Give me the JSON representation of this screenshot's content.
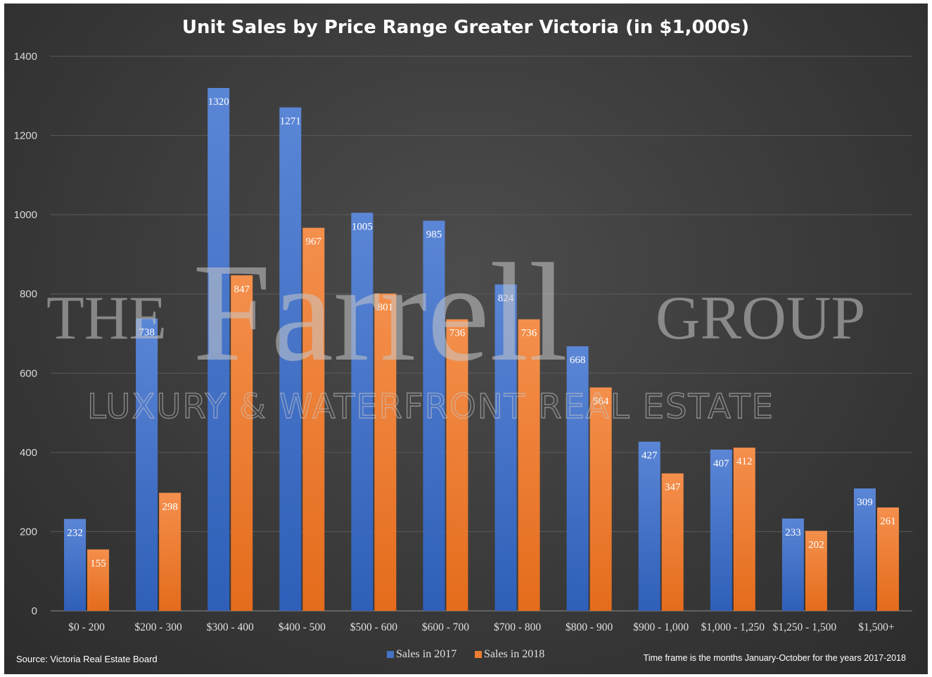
{
  "chart_data": {
    "type": "bar",
    "title": "Unit Sales by Price Range Greater Victoria (in $1,000s)",
    "categories": [
      "$0 - 200",
      "$200 - 300",
      "$300 - 400",
      "$400 - 500",
      "$500 - 600",
      "$600 - 700",
      "$700 - 800",
      "$800 - 900",
      "$900 - 1,000",
      "$1,000 - 1,250",
      "$1,250 - 1,500",
      "$1,500+"
    ],
    "series": [
      {
        "name": "Sales in 2017",
        "color": "#4472c4",
        "values": [
          232,
          738,
          1320,
          1271,
          1005,
          985,
          824,
          668,
          427,
          407,
          233,
          309
        ]
      },
      {
        "name": "Sales in 2018",
        "color": "#ed7d31",
        "values": [
          155,
          298,
          847,
          967,
          801,
          736,
          736,
          564,
          347,
          412,
          202,
          261
        ]
      }
    ],
    "ylim": [
      0,
      1400
    ],
    "yticks": [
      0,
      200,
      400,
      600,
      800,
      1000,
      1200,
      1400
    ],
    "grid": true,
    "legend_position": "bottom",
    "data_labels": true
  },
  "watermark": {
    "left": "THE",
    "center": "Farrell",
    "right": "GROUP",
    "subtitle": "LUXURY & WATERFRONT REAL ESTATE"
  },
  "footer": {
    "source": "Source:  Victoria Real Estate Board",
    "note": "Time frame is the months January-October for the years 2017-2018"
  }
}
